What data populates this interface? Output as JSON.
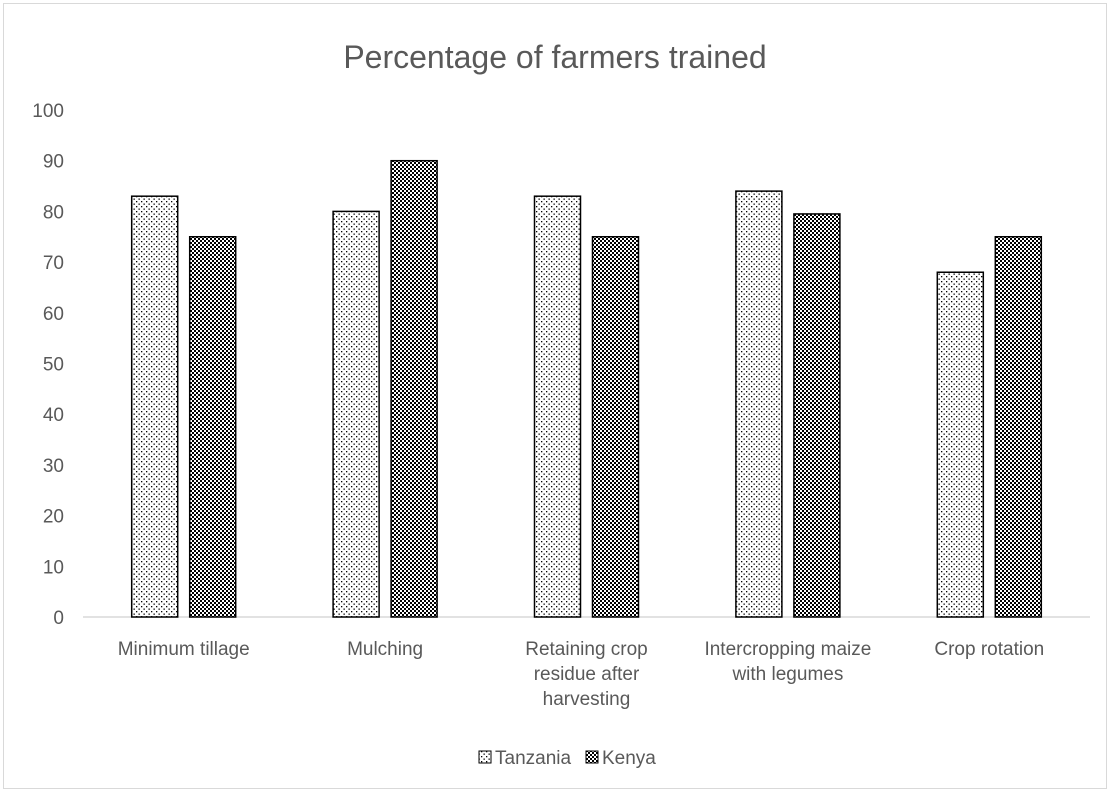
{
  "chart_data": {
    "type": "bar",
    "title": "Percentage of farmers trained",
    "xlabel": "",
    "ylabel": "",
    "ylim": [
      0,
      100
    ],
    "yticks": [
      0,
      10,
      20,
      30,
      40,
      50,
      60,
      70,
      80,
      90,
      100
    ],
    "categories": [
      [
        "Minimum tillage"
      ],
      [
        "Mulching"
      ],
      [
        "Retaining crop",
        "residue after",
        "harvesting"
      ],
      [
        "Intercropping maize",
        "with legumes"
      ],
      [
        "Crop rotation"
      ]
    ],
    "series": [
      {
        "name": "Tanzania",
        "values": [
          83,
          80,
          83,
          84,
          68
        ],
        "pattern": "light-dots"
      },
      {
        "name": "Kenya",
        "values": [
          75,
          90,
          75,
          79.5,
          75
        ],
        "pattern": "dense-checker"
      }
    ],
    "grid": false,
    "legend_position": "bottom"
  }
}
